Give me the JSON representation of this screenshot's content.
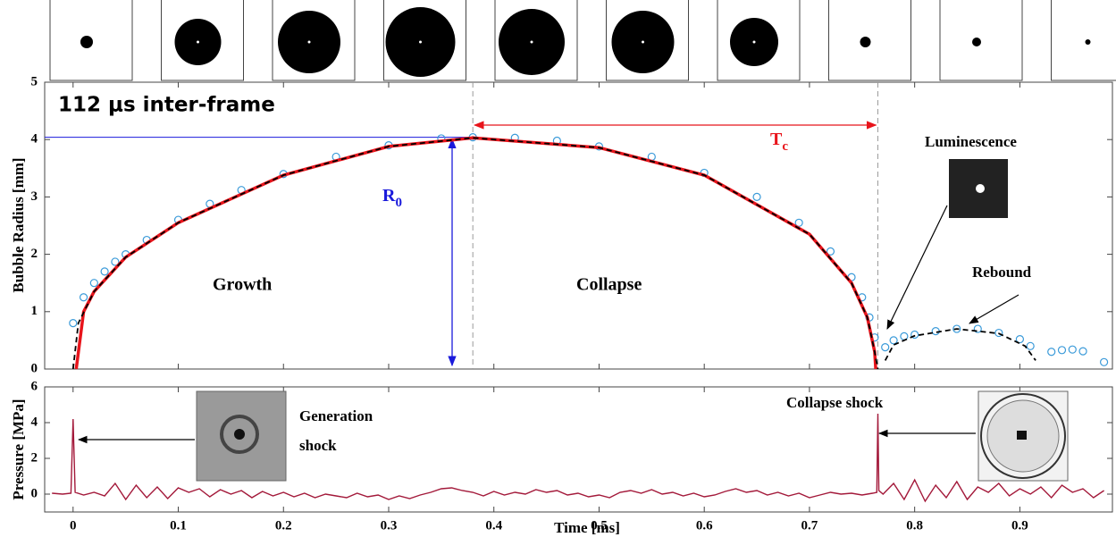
{
  "chart_data": [
    {
      "type": "scatter",
      "ylabel": "Bubble Radius [mm]",
      "xlim": [
        -0.027,
        0.988
      ],
      "ylim": [
        0,
        5
      ],
      "xticks": [
        0,
        0.1,
        0.2,
        0.3,
        0.4,
        0.5,
        0.6,
        0.7,
        0.8,
        0.9
      ],
      "yticks": [
        0,
        1,
        2,
        3,
        4,
        5
      ],
      "hline": 4.04,
      "vlines": [
        0.38,
        0.765
      ],
      "annotations": {
        "frame": "112 μs inter-frame",
        "growth": "Growth",
        "collapse": "Collapse",
        "luminescence": "Luminescence",
        "rebound": "Rebound",
        "r0": {
          "text": "R",
          "sub": "0"
        },
        "tc": {
          "text": "T",
          "sub": "c"
        }
      },
      "series": [
        {
          "style": "circles",
          "color": "#3a9ad9",
          "x": [
            0.0,
            0.01,
            0.02,
            0.03,
            0.04,
            0.05,
            0.07,
            0.1,
            0.13,
            0.16,
            0.2,
            0.25,
            0.3,
            0.35,
            0.38,
            0.42,
            0.46,
            0.5,
            0.55,
            0.6,
            0.65,
            0.69,
            0.72,
            0.74,
            0.75,
            0.757,
            0.762,
            0.772,
            0.78,
            0.79,
            0.8,
            0.82,
            0.84,
            0.86,
            0.88,
            0.9,
            0.91,
            0.93,
            0.94,
            0.95,
            0.96,
            0.98
          ],
          "values": [
            0.8,
            1.25,
            1.5,
            1.7,
            1.87,
            2.0,
            2.25,
            2.6,
            2.88,
            3.12,
            3.4,
            3.7,
            3.9,
            4.02,
            4.04,
            4.03,
            3.98,
            3.88,
            3.7,
            3.42,
            3.0,
            2.55,
            2.05,
            1.6,
            1.25,
            0.9,
            0.55,
            0.38,
            0.5,
            0.57,
            0.6,
            0.66,
            0.7,
            0.7,
            0.63,
            0.52,
            0.4,
            0.3,
            0.33,
            0.34,
            0.31,
            0.12
          ]
        },
        {
          "style": "solid",
          "color": "#e8141b",
          "x": [
            0.003,
            0.01,
            0.02,
            0.05,
            0.1,
            0.2,
            0.3,
            0.38,
            0.5,
            0.6,
            0.7,
            0.74,
            0.755,
            0.762,
            0.763
          ],
          "values": [
            0,
            1.0,
            1.35,
            1.95,
            2.55,
            3.38,
            3.88,
            4.03,
            3.86,
            3.38,
            2.35,
            1.5,
            0.9,
            0.3,
            0
          ]
        },
        {
          "style": "dashed",
          "color": "#000000",
          "x": [
            0.0,
            0.005,
            0.02,
            0.05,
            0.1,
            0.2,
            0.3,
            0.38,
            0.5,
            0.6,
            0.7,
            0.74,
            0.755,
            0.762,
            0.765,
            0.77,
            0.772,
            0.78,
            0.8,
            0.84,
            0.88,
            0.905,
            0.915
          ],
          "values": [
            0,
            0.8,
            1.35,
            1.95,
            2.55,
            3.38,
            3.88,
            4.03,
            3.86,
            3.38,
            2.35,
            1.5,
            0.9,
            0.3,
            0,
            null,
            0.15,
            0.42,
            0.58,
            0.7,
            0.62,
            0.4,
            0.15
          ]
        }
      ]
    },
    {
      "type": "line",
      "xlabel": "Time [ms]",
      "ylabel": "Pressure [MPa]",
      "xlim": [
        -0.027,
        0.988
      ],
      "ylim": [
        -1,
        6
      ],
      "xticks": [
        0,
        0.1,
        0.2,
        0.3,
        0.4,
        0.5,
        0.6,
        0.7,
        0.8,
        0.9
      ],
      "yticks": [
        0,
        2,
        4,
        6
      ],
      "annotations": {
        "generation": "Generation",
        "generation2": "shock",
        "collapse": "Collapse shock"
      },
      "series": [
        {
          "style": "solid",
          "color": "#a3193a",
          "x": [
            -0.02,
            -0.01,
            -0.002,
            0.0,
            0.002,
            0.01,
            0.02,
            0.03,
            0.04,
            0.05,
            0.06,
            0.07,
            0.08,
            0.09,
            0.1,
            0.11,
            0.12,
            0.13,
            0.14,
            0.15,
            0.16,
            0.17,
            0.18,
            0.19,
            0.2,
            0.21,
            0.22,
            0.23,
            0.24,
            0.25,
            0.26,
            0.27,
            0.28,
            0.29,
            0.3,
            0.31,
            0.32,
            0.33,
            0.34,
            0.35,
            0.36,
            0.37,
            0.38,
            0.39,
            0.4,
            0.41,
            0.42,
            0.43,
            0.44,
            0.45,
            0.46,
            0.47,
            0.48,
            0.49,
            0.5,
            0.51,
            0.52,
            0.53,
            0.54,
            0.55,
            0.56,
            0.57,
            0.58,
            0.59,
            0.6,
            0.61,
            0.62,
            0.63,
            0.64,
            0.65,
            0.66,
            0.67,
            0.68,
            0.69,
            0.7,
            0.71,
            0.72,
            0.73,
            0.74,
            0.75,
            0.76,
            0.764,
            0.765,
            0.766,
            0.77,
            0.78,
            0.79,
            0.8,
            0.81,
            0.82,
            0.83,
            0.84,
            0.85,
            0.86,
            0.87,
            0.88,
            0.89,
            0.9,
            0.91,
            0.92,
            0.93,
            0.94,
            0.95,
            0.96,
            0.97,
            0.98
          ],
          "values": [
            0.05,
            0.0,
            0.05,
            4.2,
            0.1,
            -0.05,
            0.1,
            -0.1,
            0.6,
            -0.3,
            0.5,
            -0.2,
            0.4,
            -0.25,
            0.35,
            0.1,
            0.3,
            -0.15,
            0.25,
            0.0,
            0.2,
            -0.2,
            0.15,
            -0.1,
            0.1,
            -0.15,
            0.05,
            -0.2,
            0.0,
            -0.1,
            -0.2,
            0.05,
            -0.15,
            -0.05,
            -0.3,
            -0.1,
            -0.25,
            -0.05,
            0.1,
            0.3,
            0.35,
            0.2,
            0.1,
            -0.1,
            0.15,
            -0.05,
            0.1,
            0.0,
            0.25,
            0.1,
            0.2,
            -0.05,
            0.05,
            -0.15,
            -0.05,
            -0.2,
            0.1,
            0.2,
            0.05,
            0.25,
            0.0,
            0.1,
            -0.1,
            0.05,
            -0.15,
            -0.05,
            0.15,
            0.3,
            0.1,
            0.2,
            -0.05,
            0.1,
            -0.1,
            0.05,
            -0.2,
            -0.05,
            0.1,
            0.0,
            0.05,
            -0.05,
            0.05,
            0.1,
            4.5,
            0.2,
            0.0,
            0.6,
            -0.3,
            0.8,
            -0.4,
            0.5,
            -0.2,
            0.7,
            -0.3,
            0.4,
            0.1,
            0.6,
            -0.1,
            0.3,
            0.0,
            0.4,
            -0.2,
            0.5,
            0.1,
            0.3,
            -0.2,
            0.2
          ]
        }
      ]
    }
  ]
}
